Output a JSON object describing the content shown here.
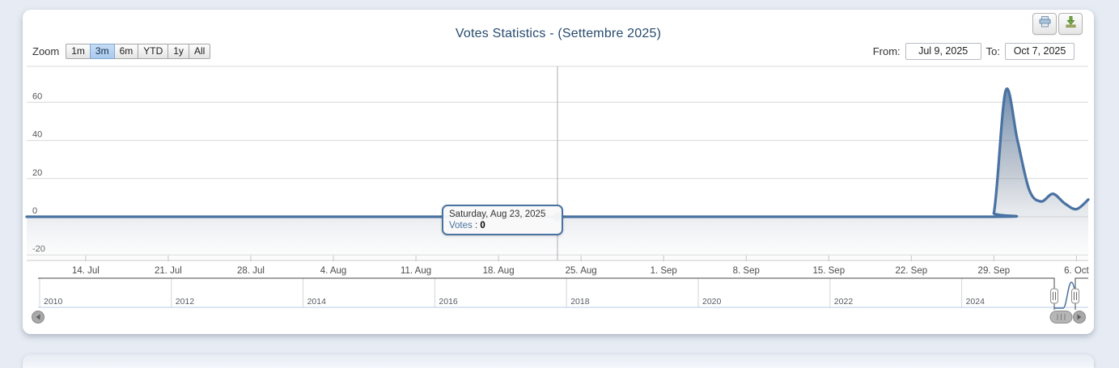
{
  "title": "Votes Statistics - (Settembre 2025)",
  "toolbar": {
    "zoom_label": "Zoom",
    "buttons": [
      "1m",
      "3m",
      "6m",
      "YTD",
      "1y",
      "All"
    ],
    "selected": "3m"
  },
  "range": {
    "from_label": "From:",
    "from_value": "Jul 9, 2025",
    "to_label": "To:",
    "to_value": "Oct 7, 2025"
  },
  "export": {
    "print_icon": "printer-icon",
    "download_icon": "download-icon"
  },
  "tooltip": {
    "date": "Saturday, Aug 23, 2025",
    "series_label": "Votes",
    "separator": " : ",
    "value": "0",
    "day_index": 45
  },
  "chart_data": {
    "type": "area",
    "title": "Votes Statistics - (Settembre 2025)",
    "xlabel": "",
    "ylabel": "",
    "x_range": [
      "Jul 9, 2025",
      "Oct 7, 2025"
    ],
    "x_range_days": 90,
    "x_tick_labels": [
      "14. Jul",
      "21. Jul",
      "28. Jul",
      "4. Aug",
      "11. Aug",
      "18. Aug",
      "25. Aug",
      "1. Sep",
      "8. Sep",
      "15. Sep",
      "22. Sep",
      "29. Sep",
      "6. Oct"
    ],
    "x_tick_first_day": 5,
    "x_tick_step_days": 7,
    "y_ticks": [
      -20,
      0,
      20,
      40,
      60
    ],
    "ylim": [
      -23,
      78
    ],
    "grid": "horizontal gridlines on",
    "legend": "none",
    "series": [
      {
        "name": "Votes",
        "color": "#4a72a2",
        "points_day_value": [
          [
            0,
            0
          ],
          [
            45,
            0
          ],
          [
            81,
            0
          ],
          [
            82,
            2
          ],
          [
            83,
            66
          ],
          [
            84,
            40
          ],
          [
            85,
            14
          ],
          [
            86,
            8
          ],
          [
            87,
            12
          ],
          [
            88,
            7
          ],
          [
            89,
            4
          ],
          [
            90,
            9
          ]
        ],
        "note": "day 0 = Jul 9 2025; value is 0 from Jul 9 through Sep 28, spike peaks ~66 around Sep 30, then 40, 14, 8, 12, 7, 4, 9 on Oct 7"
      }
    ]
  },
  "navigator": {
    "year_labels": [
      "2010",
      "2012",
      "2014",
      "2016",
      "2018",
      "2020",
      "2022",
      "2024"
    ],
    "handles": [
      "navigator-left-handle",
      "navigator-right-handle"
    ]
  },
  "scrollbar": {
    "left_arrow_icon": "scroll-left-icon",
    "right_arrow_icon": "scroll-right-icon",
    "thumb_icon": "scrollbar-grip-icon"
  },
  "colors": {
    "series": "#4a72a2",
    "title_text": "#274b6d",
    "gridline": "#d8d8d8",
    "axis_line": "#c9c9c9",
    "axis_label": "#4d4d4d",
    "crosshair": "#adadb2",
    "selected_zoom_button_bg": "#aecbec",
    "navigator_outline": "#43474d",
    "navigator_axis": "#b9cbe4",
    "page_background": "#e7ecf4"
  }
}
